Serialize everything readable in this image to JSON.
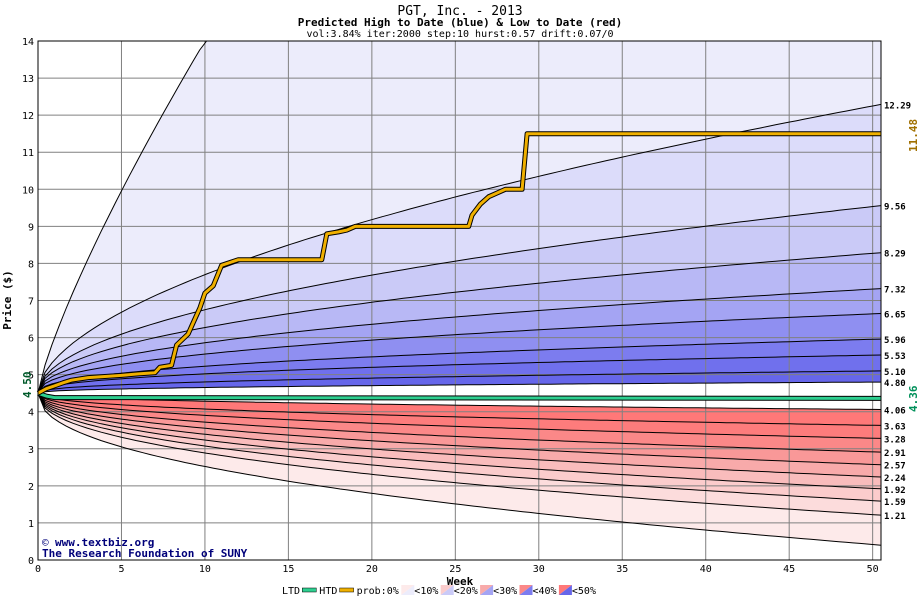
{
  "chart_data": {
    "type": "area",
    "title": "PGT, Inc. - 2013",
    "subtitle": "Predicted High to Date (blue) &  Low to Date (red)",
    "params": "vol:3.84% iter:2000 step:10 hurst:0.57 drift:0.07/0",
    "xlabel": "Week",
    "ylabel": "Price ($)",
    "xlim": [
      0,
      50.5
    ],
    "ylim": [
      0,
      14
    ],
    "xticks": [
      0,
      5,
      10,
      15,
      20,
      25,
      30,
      35,
      40,
      45,
      50
    ],
    "yticks": [
      0,
      1,
      2,
      3,
      4,
      5,
      6,
      7,
      8,
      9,
      10,
      11,
      12,
      13,
      14
    ],
    "grid": true,
    "start_price_label": "4.50",
    "start_price": 4.5,
    "last_high_label": "11.48",
    "last_high": 11.48,
    "last_low_label": "4.36",
    "last_low": 4.36,
    "high_quantile_end_labels": [
      "12.29",
      "9.56",
      "8.29",
      "7.32",
      "6.65",
      "5.96",
      "5.53",
      "5.10",
      "4.80"
    ],
    "high_quantile_end_values": [
      12.29,
      9.56,
      8.29,
      7.32,
      6.65,
      5.96,
      5.53,
      5.1,
      4.8
    ],
    "low_quantile_end_labels": [
      "4.06",
      "3.63",
      "3.28",
      "2.91",
      "2.57",
      "2.24",
      "1.92",
      "1.59",
      "1.21"
    ],
    "low_quantile_end_values": [
      4.06,
      3.63,
      3.28,
      2.91,
      2.57,
      2.24,
      1.92,
      1.59,
      1.21
    ],
    "high_to_date": {
      "name": "HTD",
      "x": [
        0,
        0.5,
        1,
        1.5,
        2,
        3,
        4,
        5,
        6,
        7,
        7.3,
        8,
        8.3,
        9,
        9.3,
        9.7,
        10,
        10.5,
        11,
        12,
        13,
        14,
        15,
        16,
        17,
        17.3,
        18,
        18.5,
        19,
        20,
        21,
        22,
        23,
        24,
        25,
        25.8,
        26,
        26.5,
        27,
        27.5,
        28,
        29,
        29.3,
        29.5,
        30,
        35,
        40,
        45,
        50.5
      ],
      "y": [
        4.5,
        4.62,
        4.7,
        4.78,
        4.85,
        4.92,
        4.95,
        4.98,
        5.02,
        5.05,
        5.2,
        5.25,
        5.8,
        6.1,
        6.4,
        6.8,
        7.2,
        7.4,
        7.95,
        8.1,
        8.1,
        8.1,
        8.1,
        8.1,
        8.1,
        8.8,
        8.85,
        8.9,
        9.0,
        9.0,
        9.0,
        9.0,
        9.0,
        9.0,
        9.0,
        9.0,
        9.3,
        9.6,
        9.8,
        9.9,
        10.0,
        10.0,
        11.5,
        11.5,
        11.5,
        11.5,
        11.5,
        11.5,
        11.5
      ]
    },
    "low_to_date": {
      "name": "LTD",
      "x": [
        0,
        0.5,
        1,
        50.5
      ],
      "y": [
        4.5,
        4.42,
        4.38,
        4.36
      ]
    },
    "legend": {
      "items": [
        "LTD",
        "HTD",
        "prob:0%",
        "<10%",
        "<20%",
        "<30%",
        "<40%",
        "<50%"
      ],
      "placement": "bottom"
    },
    "colors": {
      "high_band_light": "#ececfb",
      "high_band_mid": "#bcbcf4",
      "high_band_dark": "#7878ee",
      "low_band_light": "#fdeaea",
      "low_band_mid": "#f7a8a8",
      "low_band_dark": "#ff7a7a",
      "htd_line": "#f0b000",
      "ltd_line": "#2ecf90",
      "start_label": "#005a2a",
      "high_label": "#a07000",
      "low_label": "#00905a"
    },
    "watermark": "www.textbiz.org",
    "credit": "The Research Foundation of SUNY"
  }
}
